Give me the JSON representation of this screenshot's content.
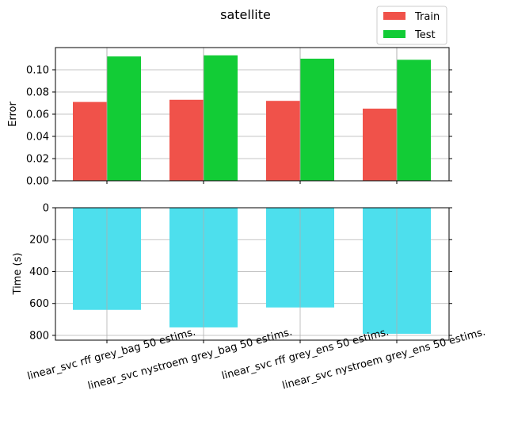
{
  "chart_data": [
    {
      "type": "bar",
      "title": "satellite",
      "categories": [
        "linear_svc rff grey_bag 50 estims.",
        "linear_svc nystroem grey_bag 50 estims.",
        "linear_svc rff grey_ens 50 estims.",
        "linear_svc nystroem grey_ens 50 estims."
      ],
      "series": [
        {
          "name": "Train",
          "color": "#f0524a",
          "values": [
            0.071,
            0.073,
            0.072,
            0.065
          ]
        },
        {
          "name": "Test",
          "color": "#12cc36",
          "values": [
            0.112,
            0.113,
            0.11,
            0.109
          ]
        }
      ],
      "xlabel": "",
      "ylabel": "Error",
      "ylim": [
        0,
        0.12
      ],
      "yticks": [
        "0.00",
        "0.02",
        "0.04",
        "0.06",
        "0.08",
        "0.10"
      ],
      "grid": true,
      "legend": "top-right"
    },
    {
      "type": "bar",
      "categories": [
        "linear_svc rff grey_bag 50 estims.",
        "linear_svc nystroem grey_bag 50 estims.",
        "linear_svc rff grey_ens 50 estims.",
        "linear_svc nystroem grey_ens 50 estims."
      ],
      "series": [
        {
          "color": "#4ddfed",
          "values": [
            640,
            750,
            625,
            790
          ]
        }
      ],
      "xlabel": "",
      "ylabel": "Time (s)",
      "ylim": [
        0,
        830
      ],
      "y_inverted": true,
      "yticks": [
        "0",
        "200",
        "400",
        "600",
        "800"
      ],
      "grid": true
    }
  ]
}
